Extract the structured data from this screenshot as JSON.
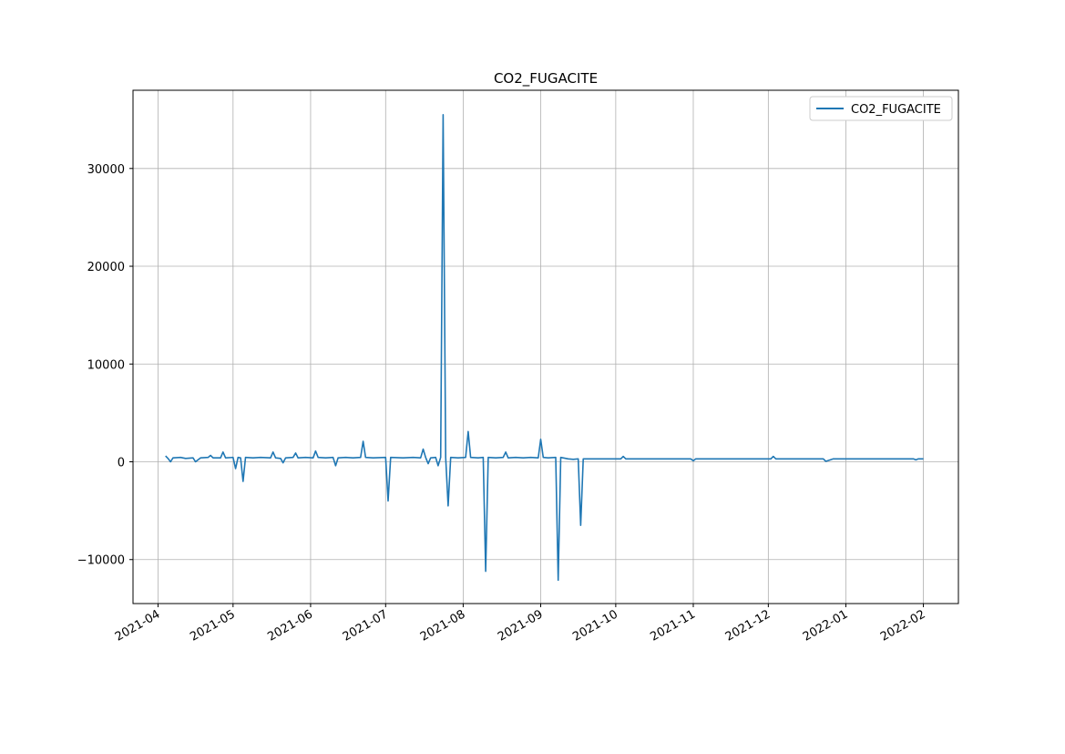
{
  "chart_data": {
    "type": "line",
    "title": "CO2_FUGACITE",
    "xlabel": "",
    "ylabel": "",
    "x_axis_type": "date",
    "xlim": [
      "2021-03-22",
      "2022-02-15"
    ],
    "ylim": [
      -14500,
      38000
    ],
    "grid": true,
    "legend_position": "top-right",
    "x_ticks": [
      "2021-04-01",
      "2021-05-01",
      "2021-06-01",
      "2021-07-01",
      "2021-08-01",
      "2021-09-01",
      "2021-10-01",
      "2021-11-01",
      "2021-12-01",
      "2022-01-01",
      "2022-02-01"
    ],
    "x_tick_labels": [
      "2021-04",
      "2021-05",
      "2021-06",
      "2021-07",
      "2021-08",
      "2021-09",
      "2021-10",
      "2021-11",
      "2021-12",
      "2022-01",
      "2022-02"
    ],
    "y_ticks": [
      -10000,
      0,
      10000,
      20000,
      30000
    ],
    "y_tick_labels": [
      "−10000",
      "0",
      "10000",
      "20000",
      "30000"
    ],
    "series": [
      {
        "name": "CO2_FUGACITE",
        "color": "#1f77b4",
        "points": [
          [
            "2021-04-04",
            600
          ],
          [
            "2021-04-05",
            350
          ],
          [
            "2021-04-06",
            0
          ],
          [
            "2021-04-07",
            400
          ],
          [
            "2021-04-10",
            450
          ],
          [
            "2021-04-12",
            350
          ],
          [
            "2021-04-15",
            400
          ],
          [
            "2021-04-16",
            0
          ],
          [
            "2021-04-18",
            400
          ],
          [
            "2021-04-21",
            450
          ],
          [
            "2021-04-22",
            650
          ],
          [
            "2021-04-23",
            400
          ],
          [
            "2021-04-26",
            400
          ],
          [
            "2021-04-27",
            1000
          ],
          [
            "2021-04-28",
            400
          ],
          [
            "2021-05-01",
            450
          ],
          [
            "2021-05-02",
            -700
          ],
          [
            "2021-05-03",
            450
          ],
          [
            "2021-05-04",
            400
          ],
          [
            "2021-05-05",
            -2000
          ],
          [
            "2021-05-06",
            450
          ],
          [
            "2021-05-09",
            400
          ],
          [
            "2021-05-12",
            450
          ],
          [
            "2021-05-16",
            400
          ],
          [
            "2021-05-17",
            1000
          ],
          [
            "2021-05-18",
            400
          ],
          [
            "2021-05-20",
            350
          ],
          [
            "2021-05-21",
            -100
          ],
          [
            "2021-05-22",
            400
          ],
          [
            "2021-05-25",
            450
          ],
          [
            "2021-05-26",
            900
          ],
          [
            "2021-05-27",
            400
          ],
          [
            "2021-05-30",
            450
          ],
          [
            "2021-06-02",
            400
          ],
          [
            "2021-06-03",
            1100
          ],
          [
            "2021-06-04",
            450
          ],
          [
            "2021-06-07",
            400
          ],
          [
            "2021-06-10",
            450
          ],
          [
            "2021-06-11",
            -400
          ],
          [
            "2021-06-12",
            400
          ],
          [
            "2021-06-15",
            450
          ],
          [
            "2021-06-18",
            400
          ],
          [
            "2021-06-21",
            450
          ],
          [
            "2021-06-22",
            2100
          ],
          [
            "2021-06-23",
            450
          ],
          [
            "2021-06-26",
            400
          ],
          [
            "2021-07-01",
            450
          ],
          [
            "2021-07-02",
            -4000
          ],
          [
            "2021-07-03",
            450
          ],
          [
            "2021-07-08",
            400
          ],
          [
            "2021-07-12",
            450
          ],
          [
            "2021-07-15",
            400
          ],
          [
            "2021-07-16",
            1300
          ],
          [
            "2021-07-17",
            450
          ],
          [
            "2021-07-18",
            -200
          ],
          [
            "2021-07-19",
            400
          ],
          [
            "2021-07-21",
            450
          ],
          [
            "2021-07-22",
            -400
          ],
          [
            "2021-07-23",
            450
          ],
          [
            "2021-07-24",
            35500
          ],
          [
            "2021-07-25",
            450
          ],
          [
            "2021-07-26",
            -4500
          ],
          [
            "2021-07-27",
            450
          ],
          [
            "2021-07-30",
            400
          ],
          [
            "2021-08-02",
            450
          ],
          [
            "2021-08-03",
            3100
          ],
          [
            "2021-08-04",
            450
          ],
          [
            "2021-08-07",
            400
          ],
          [
            "2021-08-09",
            450
          ],
          [
            "2021-08-10",
            -11200
          ],
          [
            "2021-08-11",
            450
          ],
          [
            "2021-08-14",
            400
          ],
          [
            "2021-08-17",
            450
          ],
          [
            "2021-08-18",
            1000
          ],
          [
            "2021-08-19",
            400
          ],
          [
            "2021-08-22",
            450
          ],
          [
            "2021-08-25",
            400
          ],
          [
            "2021-08-28",
            450
          ],
          [
            "2021-08-31",
            400
          ],
          [
            "2021-09-01",
            2300
          ],
          [
            "2021-09-02",
            450
          ],
          [
            "2021-09-04",
            400
          ],
          [
            "2021-09-07",
            450
          ],
          [
            "2021-09-08",
            -12100
          ],
          [
            "2021-09-09",
            450
          ],
          [
            "2021-09-12",
            300
          ],
          [
            "2021-09-14",
            250
          ],
          [
            "2021-09-16",
            300
          ],
          [
            "2021-09-17",
            -6500
          ],
          [
            "2021-09-18",
            300
          ],
          [
            "2021-09-21",
            300
          ],
          [
            "2021-10-03",
            300
          ],
          [
            "2021-10-04",
            550
          ],
          [
            "2021-10-05",
            300
          ],
          [
            "2021-10-31",
            300
          ],
          [
            "2021-11-01",
            100
          ],
          [
            "2021-11-02",
            300
          ],
          [
            "2021-12-02",
            300
          ],
          [
            "2021-12-03",
            550
          ],
          [
            "2021-12-04",
            300
          ],
          [
            "2021-12-23",
            300
          ],
          [
            "2021-12-24",
            50
          ],
          [
            "2021-12-27",
            300
          ],
          [
            "2022-01-28",
            300
          ],
          [
            "2022-01-29",
            200
          ],
          [
            "2022-01-30",
            300
          ],
          [
            "2022-02-01",
            300
          ]
        ]
      }
    ]
  }
}
